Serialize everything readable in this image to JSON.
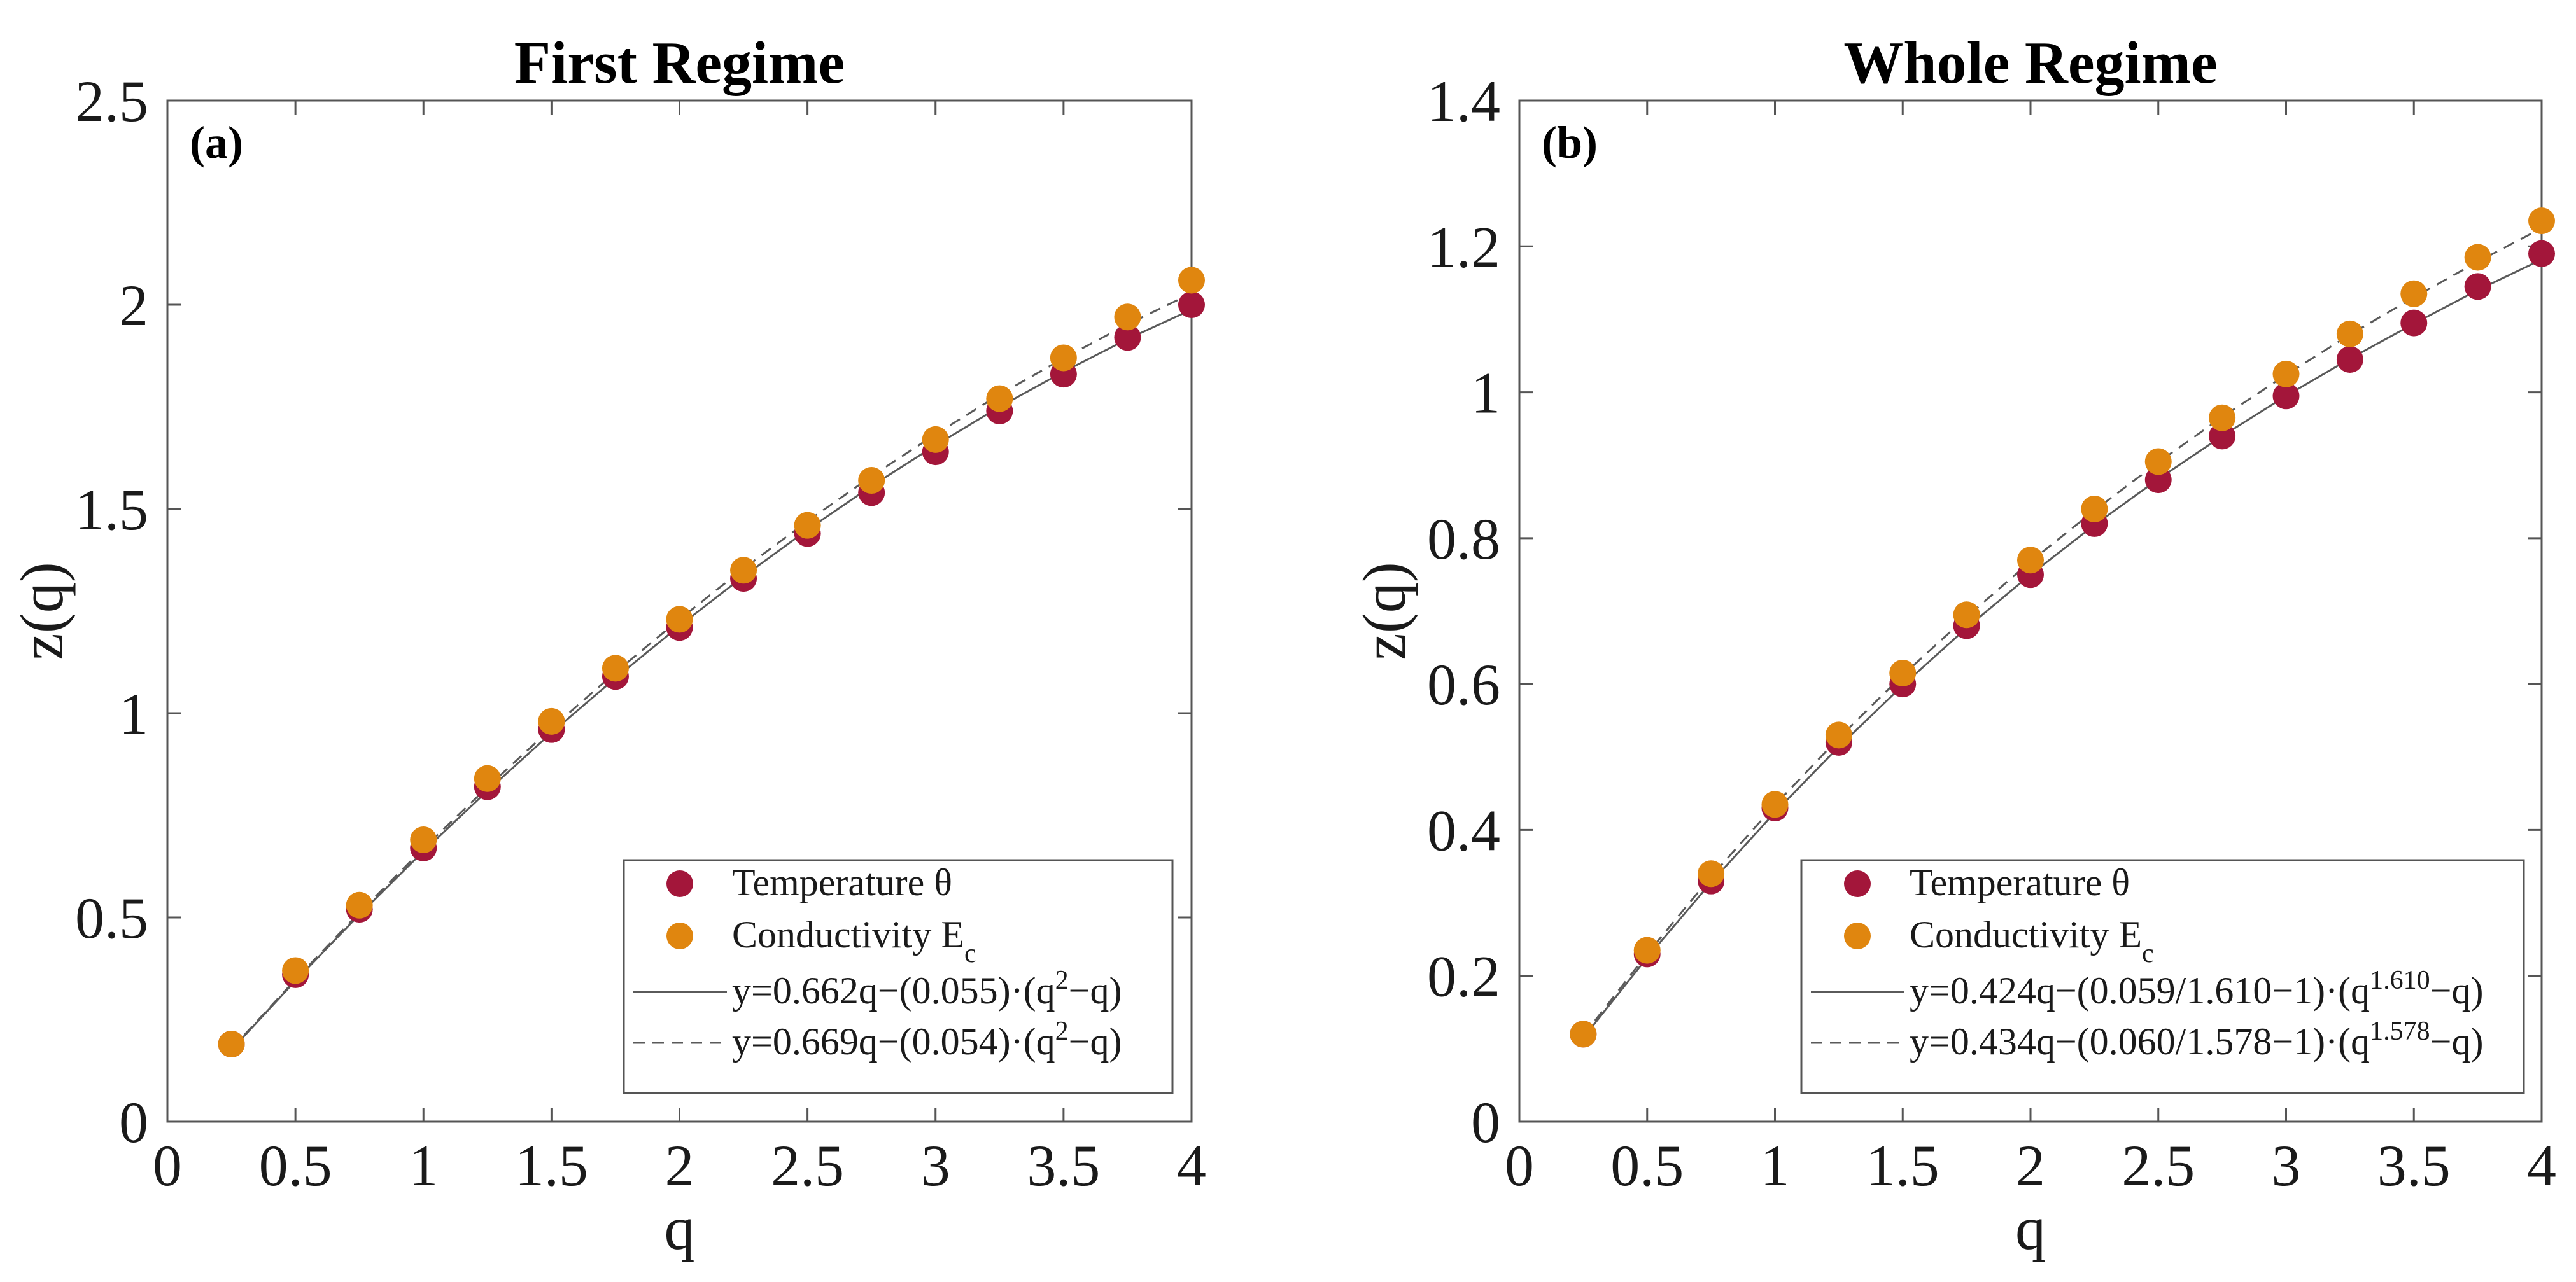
{
  "chart_data": [
    {
      "type": "scatter",
      "title": "First Regime",
      "panel_label": "(a)",
      "xlabel": "q",
      "ylabel": "z(q)",
      "xlim": [
        0,
        4
      ],
      "ylim": [
        0,
        2.5
      ],
      "xticks": [
        0,
        0.5,
        1,
        1.5,
        2,
        2.5,
        3,
        3.5,
        4
      ],
      "xtick_labels": [
        "0",
        "0.5",
        "1",
        "1.5",
        "2",
        "2.5",
        "3",
        "3.5",
        "4"
      ],
      "yticks": [
        0,
        0.5,
        1,
        1.5,
        2,
        2.5
      ],
      "ytick_labels": [
        "0",
        "0.5",
        "1",
        "1.5",
        "2",
        "2.5"
      ],
      "legend_position": "bottom-right",
      "series": [
        {
          "name": "Temperature θ",
          "legend_main": "Temperature θ",
          "legend_sub": "",
          "kind": "points",
          "color": "#a3163a",
          "x": [
            0.25,
            0.5,
            0.75,
            1.0,
            1.25,
            1.5,
            1.75,
            2.0,
            2.25,
            2.5,
            2.75,
            3.0,
            3.25,
            3.5,
            3.75,
            4.0
          ],
          "y": [
            0.19,
            0.36,
            0.52,
            0.67,
            0.82,
            0.96,
            1.09,
            1.21,
            1.33,
            1.44,
            1.54,
            1.64,
            1.74,
            1.83,
            1.92,
            2.0
          ]
        },
        {
          "name": "Conductivity E_c",
          "legend_main": "Conductivity E",
          "legend_sub": "c",
          "kind": "points",
          "color": "#e0860f",
          "x": [
            0.25,
            0.5,
            0.75,
            1.0,
            1.25,
            1.5,
            1.75,
            2.0,
            2.25,
            2.5,
            2.75,
            3.0,
            3.25,
            3.5,
            3.75,
            4.0
          ],
          "y": [
            0.19,
            0.37,
            0.53,
            0.69,
            0.84,
            0.98,
            1.11,
            1.23,
            1.35,
            1.46,
            1.57,
            1.67,
            1.77,
            1.87,
            1.97,
            2.06
          ]
        },
        {
          "name": "fit solid",
          "kind": "line",
          "dash": "solid",
          "color": "#5a5a5a",
          "legend_parts": [
            "y=0.662q−(0.055)·(q",
            "2",
            "−q)"
          ],
          "x": [
            0.25,
            0.5,
            0.75,
            1.0,
            1.25,
            1.5,
            1.75,
            2.0,
            2.25,
            2.5,
            2.75,
            3.0,
            3.25,
            3.5,
            3.75,
            4.0
          ],
          "y": [
            0.176,
            0.345,
            0.507,
            0.662,
            0.81,
            0.952,
            1.086,
            1.214,
            1.335,
            1.449,
            1.556,
            1.656,
            1.75,
            1.836,
            1.916,
            1.988
          ]
        },
        {
          "name": "fit dashed",
          "kind": "line",
          "dash": "dashed",
          "color": "#5a5a5a",
          "legend_parts": [
            "y=0.669q−(0.054)·(q",
            "2",
            "−q)"
          ],
          "x": [
            0.25,
            0.5,
            0.75,
            1.0,
            1.25,
            1.5,
            1.75,
            2.0,
            2.25,
            2.5,
            2.75,
            3.0,
            3.25,
            3.5,
            3.75,
            4.0
          ],
          "y": [
            0.178,
            0.348,
            0.512,
            0.669,
            0.819,
            0.963,
            1.1,
            1.23,
            1.354,
            1.47,
            1.58,
            1.683,
            1.78,
            1.869,
            1.952,
            2.028
          ]
        }
      ]
    },
    {
      "type": "scatter",
      "title": "Whole Regime",
      "panel_label": "(b)",
      "xlabel": "q",
      "ylabel": "z(q)",
      "xlim": [
        0,
        4
      ],
      "ylim": [
        0,
        1.4
      ],
      "xticks": [
        0,
        0.5,
        1,
        1.5,
        2,
        2.5,
        3,
        3.5,
        4
      ],
      "xtick_labels": [
        "0",
        "0.5",
        "1",
        "1.5",
        "2",
        "2.5",
        "3",
        "3.5",
        "4"
      ],
      "yticks": [
        0,
        0.2,
        0.4,
        0.6,
        0.8,
        1,
        1.2,
        1.4
      ],
      "ytick_labels": [
        "0",
        "0.2",
        "0.4",
        "0.6",
        "0.8",
        "1",
        "1.2",
        "1.4"
      ],
      "legend_position": "bottom-right",
      "series": [
        {
          "name": "Temperature θ",
          "legend_main": "Temperature θ",
          "legend_sub": "",
          "kind": "points",
          "color": "#a3163a",
          "x": [
            0.25,
            0.5,
            0.75,
            1.0,
            1.25,
            1.5,
            1.75,
            2.0,
            2.25,
            2.5,
            2.75,
            3.0,
            3.25,
            3.5,
            3.75,
            4.0
          ],
          "y": [
            0.12,
            0.23,
            0.33,
            0.43,
            0.52,
            0.6,
            0.68,
            0.75,
            0.82,
            0.88,
            0.94,
            0.995,
            1.045,
            1.095,
            1.145,
            1.19
          ]
        },
        {
          "name": "Conductivity E_c",
          "legend_main": "Conductivity E",
          "legend_sub": "c",
          "kind": "points",
          "color": "#e0860f",
          "x": [
            0.25,
            0.5,
            0.75,
            1.0,
            1.25,
            1.5,
            1.75,
            2.0,
            2.25,
            2.5,
            2.75,
            3.0,
            3.25,
            3.5,
            3.75,
            4.0
          ],
          "y": [
            0.12,
            0.235,
            0.34,
            0.435,
            0.53,
            0.615,
            0.695,
            0.77,
            0.84,
            0.905,
            0.965,
            1.025,
            1.08,
            1.135,
            1.185,
            1.235
          ]
        },
        {
          "name": "fit solid",
          "kind": "line",
          "dash": "solid",
          "color": "#5a5a5a",
          "legend_parts": [
            "y=0.424q−(0.059/1.610−1)·(q",
            "1.610",
            "−q)"
          ],
          "x": [
            0.25,
            0.5,
            0.75,
            1.0,
            1.25,
            1.5,
            1.75,
            2.0,
            2.25,
            2.5,
            2.75,
            3.0,
            3.25,
            3.5,
            3.75,
            4.0
          ],
          "y": [
            0.115,
            0.225,
            0.328,
            0.424,
            0.514,
            0.598,
            0.677,
            0.75,
            0.818,
            0.881,
            0.94,
            0.995,
            1.046,
            1.094,
            1.14,
            1.182
          ]
        },
        {
          "name": "fit dashed",
          "kind": "line",
          "dash": "dashed",
          "color": "#5a5a5a",
          "legend_parts": [
            "y=0.434q−(0.060/1.578−1)·(q",
            "1.578",
            "−q)"
          ],
          "x": [
            0.25,
            0.5,
            0.75,
            1.0,
            1.25,
            1.5,
            1.75,
            2.0,
            2.25,
            2.5,
            2.75,
            3.0,
            3.25,
            3.5,
            3.75,
            4.0
          ],
          "y": [
            0.118,
            0.23,
            0.336,
            0.434,
            0.526,
            0.612,
            0.692,
            0.768,
            0.838,
            0.904,
            0.966,
            1.024,
            1.079,
            1.13,
            1.179,
            1.225
          ]
        }
      ]
    }
  ]
}
